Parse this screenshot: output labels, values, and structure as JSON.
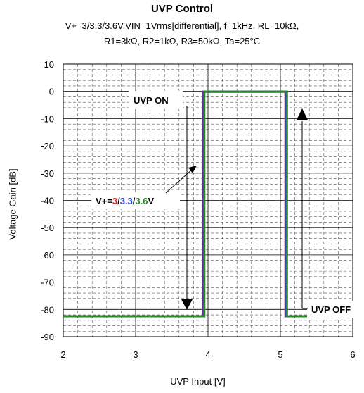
{
  "chart_data": {
    "type": "line",
    "title": "UVP Control",
    "subtitle_line1": "V+=3/3.3/3.6V,VIN=1Vrms[differential], f=1kHz, RL=10kΩ,",
    "subtitle_line2": "R1=3kΩ, R2=1kΩ, R3=50kΩ, Ta=25°C",
    "xlabel": "UVP Input [V]",
    "ylabel": "Voltage Gain [dB]",
    "xlim": [
      2,
      6
    ],
    "ylim": [
      -90,
      10
    ],
    "xticks": [
      2,
      3,
      4,
      5,
      6
    ],
    "yticks": [
      10,
      0,
      -10,
      -20,
      -30,
      -40,
      -50,
      -60,
      -70,
      -80,
      -90
    ],
    "grid": true,
    "series": [
      {
        "name": "3",
        "color": "#e8141c",
        "x": [
          2,
          3.93,
          3.93,
          5.07,
          5.07,
          6
        ],
        "y": [
          -82.5,
          -82.5,
          -0.1,
          -0.1,
          -82.5,
          -82.5
        ]
      },
      {
        "name": "3.3",
        "color": "#1f3bd6",
        "x": [
          2,
          3.94,
          3.94,
          5.08,
          5.08,
          6
        ],
        "y": [
          -82.5,
          -82.5,
          -0.1,
          -0.1,
          -82.5,
          -82.5
        ]
      },
      {
        "name": "3.6",
        "color": "#2a8a2a",
        "x": [
          2,
          3.95,
          3.95,
          5.09,
          5.09,
          6
        ],
        "y": [
          -82.5,
          -82.5,
          -0.1,
          -0.1,
          -82.5,
          -82.5
        ]
      }
    ],
    "annotations": [
      {
        "label": "UVP ON"
      },
      {
        "label": "UVP OFF"
      },
      {
        "label_prefix": "V+=",
        "parts": [
          "3",
          "/",
          "3.3",
          "/",
          "3.6",
          "V"
        ]
      }
    ]
  }
}
